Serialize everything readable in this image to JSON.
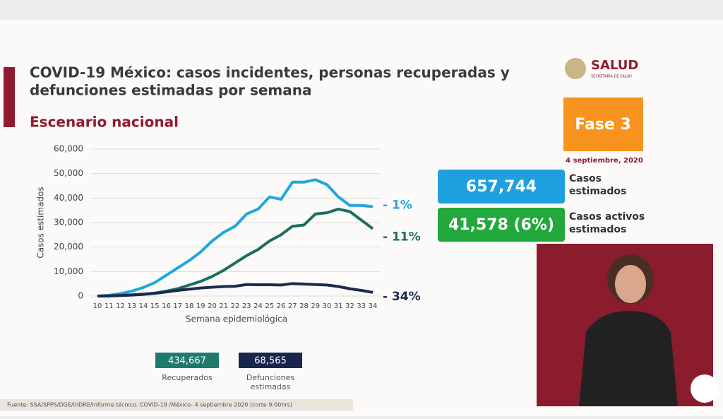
{
  "header": {
    "title_line1": "COVID-19 México: casos incidentes, personas recuperadas y",
    "title_line2": "defunciones estimadas por semana",
    "subtitle": "Escenario nacional"
  },
  "logo": {
    "name": "SALUD",
    "sub": "SECRETARÍA DE SALUD"
  },
  "phase": {
    "label": "Fase 3",
    "date": "4 septiembre, 2020"
  },
  "stats": [
    {
      "value": "657,744",
      "label1": "Casos",
      "label2": "estimados",
      "color": "#1fa0de"
    },
    {
      "value": "41,578 (6%)",
      "label1": "Casos activos",
      "label2": "estimados",
      "color": "#22a83c"
    }
  ],
  "totals": [
    {
      "value": "434,667",
      "label1": "Recuperados",
      "color": "#1f7a6e"
    },
    {
      "value": "68,565",
      "label1": "Defunciones",
      "label2": "estimadas",
      "color": "#17264e"
    }
  ],
  "footer": "Fuente: SSA/SPPS/DGE/InDRE/Informe técnico. COVID-19 /México- 4 septiembre 2020 (corte 9:00hrs)",
  "chart_data": {
    "type": "line",
    "x_label": "Semana epidemiológica",
    "y_label": "Casos estimados",
    "x": [
      10,
      11,
      12,
      13,
      14,
      15,
      16,
      17,
      18,
      19,
      20,
      21,
      22,
      23,
      24,
      25,
      26,
      27,
      28,
      29,
      30,
      31,
      32,
      33,
      34
    ],
    "xlim": [
      10,
      34
    ],
    "xticks": [
      10,
      11,
      12,
      13,
      14,
      15,
      16,
      17,
      18,
      19,
      20,
      21,
      22,
      23,
      24,
      25,
      26,
      27,
      28,
      29,
      30,
      31,
      32,
      33,
      34
    ],
    "ylim": [
      0,
      60000
    ],
    "yticks": [
      0,
      {
        "value": 10000,
        "label": "10,000"
      },
      {
        "value": 20000,
        "label": "20,000"
      },
      {
        "value": 30000,
        "label": "30,000"
      },
      {
        "value": 40000,
        "label": "40,000"
      },
      {
        "value": 50000,
        "label": "50,000"
      },
      {
        "value": 60000,
        "label": "60,000"
      }
    ],
    "grid": true,
    "series": [
      {
        "name": "Casos estimados",
        "color": "#1fa7dd",
        "end_label": "- 1%",
        "values": [
          0,
          300,
          1000,
          2000,
          3500,
          5500,
          8500,
          11500,
          14500,
          18000,
          22500,
          26000,
          28500,
          33500,
          35500,
          40500,
          39500,
          46500,
          46500,
          47500,
          45500,
          40500,
          37000,
          37000,
          36500
        ]
      },
      {
        "name": "Recuperados",
        "color": "#1a6e64",
        "end_label": "- 11%",
        "values": [
          0,
          100,
          300,
          500,
          800,
          1200,
          2000,
          3000,
          4500,
          6000,
          8000,
          10500,
          13500,
          16500,
          19000,
          22500,
          25000,
          28500,
          29000,
          33500,
          34000,
          35500,
          34500,
          31000,
          27500
        ]
      },
      {
        "name": "Defunciones estimadas",
        "color": "#1b2a4e",
        "end_label": "- 34%",
        "values": [
          0,
          50,
          200,
          400,
          700,
          1100,
          1700,
          2300,
          2800,
          3300,
          3600,
          3900,
          4000,
          4700,
          4600,
          4600,
          4500,
          5100,
          4900,
          4700,
          4500,
          3900,
          3000,
          2300,
          1500
        ]
      }
    ]
  }
}
